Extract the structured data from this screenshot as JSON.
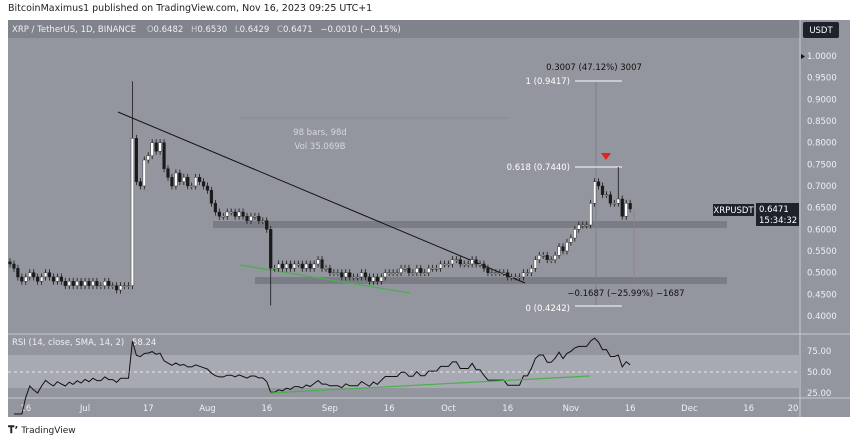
{
  "header": {
    "published": "BitcoinMaximus1 published on TradingView.com, Nov 16, 2023 09:25 UTC+1"
  },
  "legend": {
    "symbol": "XRP / TetherUS, 1D, BINANCE",
    "o_label": "O",
    "o": "0.6482",
    "h_label": "H",
    "h": "0.6530",
    "l_label": "L",
    "l": "0.6429",
    "c_label": "C",
    "c": "0.6471",
    "change": "−0.0010 (−0.15%)"
  },
  "currency_button": "USDT",
  "price_tag": {
    "symbol": "XRPUSDT",
    "price": "0.6471",
    "countdown": "15:34:32"
  },
  "annotations": {
    "range_top": "0.3007 (47.12%) 3007",
    "fib_1": "1 (0.9417)",
    "fib_0618": "0.618 (0.7440)",
    "fib_0": "0 (0.4242)",
    "range_bottom": "−0.1687 (−25.99%) −1687",
    "bars": "98 bars, 98d",
    "vol": "Vol 35.069B"
  },
  "rsi": {
    "label": "RSI (14, close, SMA, 14, 2)",
    "value": "58.24",
    "ticks": [
      "75.00",
      "50.00",
      "25.00"
    ]
  },
  "footer": {
    "brand": "TradingView"
  },
  "colors": {
    "background": "#93969e",
    "up": "#ffffff",
    "down": "#1a1a1a",
    "trendline_green": "#4caf50",
    "marker": "#e5201c",
    "support_band": "#7a7d85"
  },
  "chart_data": {
    "type": "candlestick",
    "title": "XRP / TetherUS, 1D, BINANCE",
    "start_date": "2023-06-12",
    "end_date": "2023-11-16",
    "ylim": [
      0.38,
      1.02
    ],
    "y_ticks": [
      "1.0000",
      "0.9500",
      "0.9000",
      "0.8500",
      "0.8000",
      "0.7500",
      "0.7000",
      "0.6500",
      "0.6000",
      "0.5500",
      "0.5000",
      "0.4500",
      "0.4000"
    ],
    "x_ticks": [
      "16",
      "Jul",
      "17",
      "Aug",
      "16",
      "Sep",
      "16",
      "Oct",
      "16",
      "Nov",
      "16",
      "Dec",
      "16",
      "20"
    ],
    "closes": [
      0.52,
      0.51,
      0.49,
      0.48,
      0.49,
      0.5,
      0.49,
      0.48,
      0.49,
      0.5,
      0.49,
      0.48,
      0.49,
      0.48,
      0.47,
      0.48,
      0.47,
      0.48,
      0.47,
      0.48,
      0.47,
      0.48,
      0.47,
      0.47,
      0.48,
      0.47,
      0.47,
      0.46,
      0.47,
      0.47,
      0.47,
      0.81,
      0.71,
      0.7,
      0.76,
      0.77,
      0.8,
      0.78,
      0.8,
      0.74,
      0.72,
      0.7,
      0.73,
      0.71,
      0.72,
      0.7,
      0.7,
      0.72,
      0.71,
      0.7,
      0.69,
      0.66,
      0.64,
      0.63,
      0.63,
      0.64,
      0.64,
      0.63,
      0.64,
      0.63,
      0.62,
      0.63,
      0.63,
      0.62,
      0.62,
      0.6,
      0.51,
      0.51,
      0.52,
      0.51,
      0.52,
      0.51,
      0.52,
      0.52,
      0.51,
      0.52,
      0.51,
      0.52,
      0.53,
      0.51,
      0.51,
      0.5,
      0.5,
      0.5,
      0.49,
      0.5,
      0.49,
      0.49,
      0.49,
      0.5,
      0.49,
      0.48,
      0.49,
      0.48,
      0.49,
      0.5,
      0.5,
      0.5,
      0.5,
      0.51,
      0.51,
      0.5,
      0.5,
      0.51,
      0.5,
      0.5,
      0.51,
      0.51,
      0.51,
      0.52,
      0.52,
      0.52,
      0.53,
      0.53,
      0.52,
      0.52,
      0.52,
      0.53,
      0.52,
      0.52,
      0.51,
      0.5,
      0.5,
      0.5,
      0.5,
      0.5,
      0.49,
      0.49,
      0.49,
      0.49,
      0.5,
      0.5,
      0.51,
      0.53,
      0.54,
      0.54,
      0.53,
      0.53,
      0.54,
      0.56,
      0.55,
      0.57,
      0.58,
      0.6,
      0.61,
      0.61,
      0.61,
      0.66,
      0.71,
      0.7,
      0.68,
      0.68,
      0.66,
      0.66,
      0.67,
      0.63,
      0.66,
      0.6471
    ],
    "extremes": [
      {
        "date": "2023-07-13",
        "high": 0.9417
      },
      {
        "date": "2023-08-17",
        "low": 0.4242
      },
      {
        "date": "2023-11-13",
        "high": 0.744
      }
    ],
    "support_zones": [
      0.61,
      0.485
    ],
    "fib_levels": [
      {
        "ratio": 1,
        "price": 0.9417
      },
      {
        "ratio": 0.618,
        "price": 0.744
      },
      {
        "ratio": 0,
        "price": 0.4242
      }
    ],
    "legend": "top-left",
    "grid": false
  }
}
